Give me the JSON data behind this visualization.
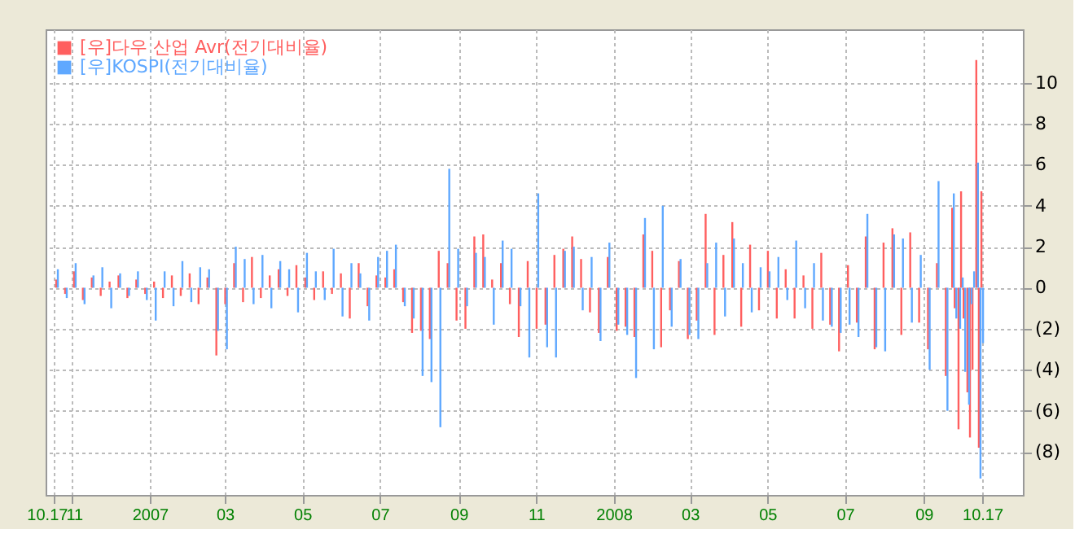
{
  "chart_data": {
    "type": "bar",
    "x": [
      "2006-10-20",
      "2006-10-27",
      "2006-11-03",
      "2006-11-10",
      "2006-11-17",
      "2006-11-24",
      "2006-12-01",
      "2006-12-08",
      "2006-12-15",
      "2006-12-22",
      "2006-12-29",
      "2007-01-05",
      "2007-01-12",
      "2007-01-19",
      "2007-01-26",
      "2007-02-02",
      "2007-02-09",
      "2007-02-16",
      "2007-02-23",
      "2007-03-02",
      "2007-03-09",
      "2007-03-16",
      "2007-03-23",
      "2007-03-30",
      "2007-04-06",
      "2007-04-13",
      "2007-04-20",
      "2007-04-27",
      "2007-05-04",
      "2007-05-11",
      "2007-05-18",
      "2007-05-25",
      "2007-06-01",
      "2007-06-08",
      "2007-06-15",
      "2007-06-22",
      "2007-06-29",
      "2007-07-06",
      "2007-07-13",
      "2007-07-20",
      "2007-07-27",
      "2007-08-03",
      "2007-08-10",
      "2007-08-17",
      "2007-08-24",
      "2007-08-31",
      "2007-09-07",
      "2007-09-14",
      "2007-09-21",
      "2007-09-28",
      "2007-10-05",
      "2007-10-12",
      "2007-10-19",
      "2007-10-26",
      "2007-11-02",
      "2007-11-09",
      "2007-11-16",
      "2007-11-23",
      "2007-11-30",
      "2007-12-07",
      "2007-12-14",
      "2007-12-21",
      "2007-12-28",
      "2008-01-04",
      "2008-01-11",
      "2008-01-18",
      "2008-01-25",
      "2008-02-01",
      "2008-02-08",
      "2008-02-15",
      "2008-02-22",
      "2008-02-29",
      "2008-03-07",
      "2008-03-14",
      "2008-03-21",
      "2008-03-28",
      "2008-04-04",
      "2008-04-11",
      "2008-04-18",
      "2008-04-25",
      "2008-05-02",
      "2008-05-09",
      "2008-05-16",
      "2008-05-23",
      "2008-05-30",
      "2008-06-06",
      "2008-06-13",
      "2008-06-20",
      "2008-06-27",
      "2008-07-04",
      "2008-07-11",
      "2008-07-18",
      "2008-07-25",
      "2008-08-01",
      "2008-08-08",
      "2008-08-15",
      "2008-08-22",
      "2008-08-29",
      "2008-09-05",
      "2008-09-12",
      "2008-09-19",
      "2008-09-24",
      "2008-09-26",
      "2008-09-29",
      "2008-10-01",
      "2008-10-03",
      "2008-10-06",
      "2008-10-08",
      "2008-10-10",
      "2008-10-13",
      "2008-10-15",
      "2008-10-17"
    ],
    "xlim": [
      "2006-10-11",
      "2008-11-18"
    ],
    "xticks": [
      {
        "value": "2006-10-17",
        "label": "10.17"
      },
      {
        "value": "2006-11-01",
        "label": "11"
      },
      {
        "value": "2007-01-01",
        "label": "2007"
      },
      {
        "value": "2007-03-01",
        "label": "03"
      },
      {
        "value": "2007-05-01",
        "label": "05"
      },
      {
        "value": "2007-07-01",
        "label": "07"
      },
      {
        "value": "2007-09-01",
        "label": "09"
      },
      {
        "value": "2007-11-01",
        "label": "11"
      },
      {
        "value": "2008-01-01",
        "label": "2008"
      },
      {
        "value": "2008-03-01",
        "label": "03"
      },
      {
        "value": "2008-05-01",
        "label": "05"
      },
      {
        "value": "2008-07-01",
        "label": "07"
      },
      {
        "value": "2008-09-01",
        "label": "09"
      },
      {
        "value": "2008-10-17",
        "label": "10.17"
      }
    ],
    "ylim": [
      -10.1,
      12.6
    ],
    "yticks": [
      {
        "value": -8,
        "label": "(8)"
      },
      {
        "value": -6,
        "label": "(6)"
      },
      {
        "value": -4,
        "label": "(4)"
      },
      {
        "value": -2,
        "label": "(2)"
      },
      0,
      2,
      4,
      6,
      8,
      10
    ],
    "grid": true,
    "legend": "top left",
    "series": [
      {
        "name": "[우]다우 산업 Avr(전기대비율)",
        "color": "#ff5f5f",
        "values": [
          0.4,
          -0.3,
          0.8,
          -0.6,
          0.5,
          -0.4,
          0.3,
          0.6,
          -0.5,
          0.4,
          -0.3,
          0.3,
          -0.5,
          0.6,
          -0.4,
          0.7,
          -0.8,
          0.5,
          -3.3,
          -0.8,
          1.2,
          -0.7,
          1.5,
          -0.5,
          0.6,
          0.9,
          -0.4,
          1.1,
          0.5,
          -0.6,
          0.8,
          -0.3,
          0.7,
          -1.5,
          1.2,
          -0.9,
          0.6,
          0.5,
          0.9,
          -0.7,
          -2.2,
          -2.1,
          -2.5,
          1.8,
          1.2,
          -1.6,
          -2.0,
          2.5,
          2.6,
          0.4,
          1.2,
          -0.8,
          -2.4,
          1.3,
          -2.0,
          -1.8,
          1.6,
          1.9,
          2.5,
          1.4,
          -1.2,
          -2.2,
          1.5,
          -2.1,
          -1.9,
          -2.4,
          2.6,
          1.8,
          -2.9,
          -1.1,
          1.3,
          -2.5,
          -1.6,
          3.6,
          -2.3,
          1.6,
          3.2,
          -1.9,
          2.1,
          -1.1,
          1.8,
          -1.5,
          0.9,
          -1.5,
          0.6,
          -2.0,
          1.7,
          -1.8,
          -3.1,
          1.1,
          -1.7,
          2.5,
          -3.0,
          2.2,
          2.9,
          -2.3,
          2.7,
          -1.7,
          -3.0,
          1.2,
          -4.3,
          3.9,
          -1.0,
          -6.9,
          4.7,
          -1.5,
          -5.1,
          -7.3,
          -4.0,
          11.1,
          -7.8,
          4.7
        ]
      },
      {
        "name": "[우]KOSPI(전기대비율)",
        "color": "#5fa8ff",
        "values": [
          0.9,
          -0.5,
          1.2,
          -0.8,
          0.6,
          1.0,
          -1.0,
          0.7,
          -0.4,
          0.8,
          -0.6,
          -1.6,
          0.8,
          -0.9,
          1.3,
          -0.7,
          1.0,
          0.9,
          -2.1,
          -3.0,
          2.0,
          1.4,
          -0.8,
          1.6,
          -1.0,
          1.3,
          0.9,
          -1.2,
          1.7,
          0.8,
          -0.6,
          1.9,
          -1.4,
          1.2,
          0.7,
          -1.6,
          1.5,
          1.8,
          2.1,
          -0.9,
          -1.5,
          -4.3,
          -4.6,
          -6.8,
          5.8,
          1.9,
          -0.9,
          1.7,
          1.5,
          -1.8,
          2.3,
          1.9,
          -0.9,
          -3.4,
          4.6,
          -2.9,
          -3.4,
          1.8,
          2.0,
          -1.1,
          1.5,
          -2.6,
          2.2,
          -1.8,
          -2.3,
          -4.4,
          3.4,
          -3.0,
          4.0,
          -1.9,
          1.4,
          -2.3,
          -2.5,
          1.2,
          2.2,
          -1.4,
          2.4,
          1.2,
          -1.2,
          1.0,
          0.8,
          1.5,
          -0.6,
          2.3,
          -1.0,
          1.2,
          -1.6,
          -1.9,
          -2.2,
          -1.8,
          -2.4,
          3.6,
          -2.9,
          -3.1,
          2.6,
          2.4,
          -1.7,
          1.6,
          -4.0,
          5.2,
          -6.0,
          4.6,
          -1.5,
          -2.0,
          0.5,
          -4.1,
          -5.7,
          -0.8,
          0.8,
          6.1,
          -9.3,
          -2.7
        ]
      }
    ]
  }
}
